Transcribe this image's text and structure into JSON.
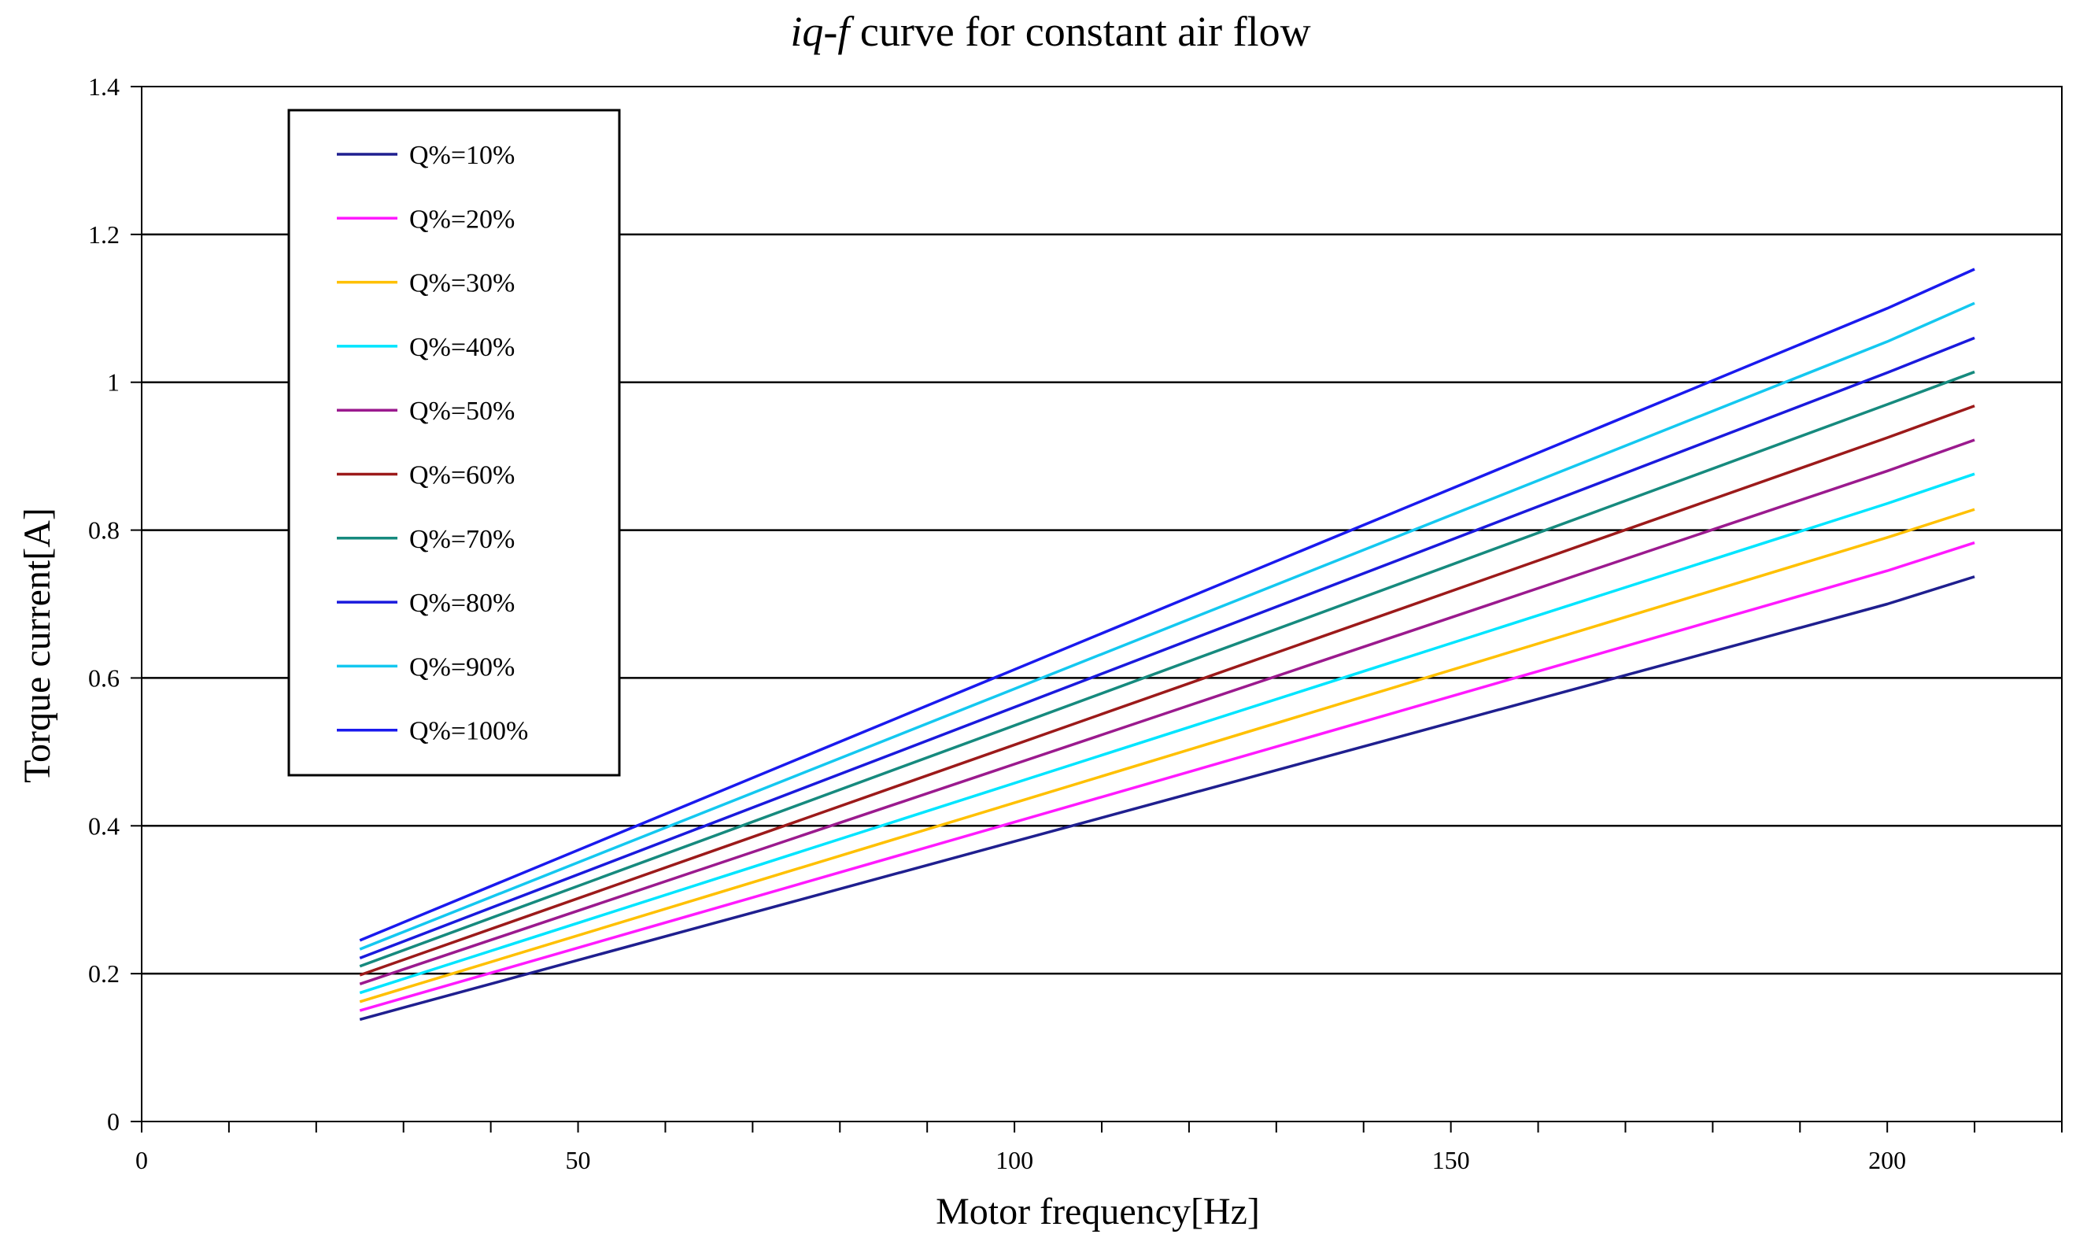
{
  "chart_data": {
    "type": "line",
    "title_italic": "iq-f",
    "title_rest": " curve for constant air flow",
    "xlabel": "Motor frequency[Hz]",
    "ylabel": "Torque current[A]",
    "xlim": [
      0,
      220
    ],
    "ylim": [
      0,
      1.4
    ],
    "x_tick_values": [
      0,
      50,
      100,
      150,
      200
    ],
    "x_tick_labels": [
      "0",
      "50",
      "100",
      "150",
      "200"
    ],
    "x_minor_step": 10,
    "y_tick_values": [
      0,
      0.2,
      0.4,
      0.6,
      0.8,
      1.0,
      1.2,
      1.4
    ],
    "y_tick_labels": [
      "0",
      "0.2",
      "0.4",
      "0.6",
      "0.8",
      "1",
      "1.2",
      "1.4"
    ],
    "grid": "horizontal",
    "legend_position": "top-left",
    "x": [
      25,
      200,
      210
    ],
    "series": [
      {
        "name": "Q%=10%",
        "color": "#1f1f8f",
        "values": [
          0.138,
          0.7,
          0.737
        ]
      },
      {
        "name": "Q%=20%",
        "color": "#ff1aff",
        "values": [
          0.15,
          0.745,
          0.783
        ]
      },
      {
        "name": "Q%=30%",
        "color": "#ffc000",
        "values": [
          0.162,
          0.79,
          0.828
        ]
      },
      {
        "name": "Q%=40%",
        "color": "#00e5ff",
        "values": [
          0.174,
          0.836,
          0.876
        ]
      },
      {
        "name": "Q%=50%",
        "color": "#9b1a8e",
        "values": [
          0.186,
          0.88,
          0.922
        ]
      },
      {
        "name": "Q%=60%",
        "color": "#9c1a1a",
        "values": [
          0.198,
          0.925,
          0.968
        ]
      },
      {
        "name": "Q%=70%",
        "color": "#168a7e",
        "values": [
          0.21,
          0.97,
          1.014
        ]
      },
      {
        "name": "Q%=80%",
        "color": "#1a1add",
        "values": [
          0.221,
          1.013,
          1.06
        ]
      },
      {
        "name": "Q%=90%",
        "color": "#14c8f0",
        "values": [
          0.233,
          1.055,
          1.107
        ]
      },
      {
        "name": "Q%=100%",
        "color": "#1a1aee",
        "values": [
          0.245,
          1.1,
          1.153
        ]
      }
    ]
  }
}
